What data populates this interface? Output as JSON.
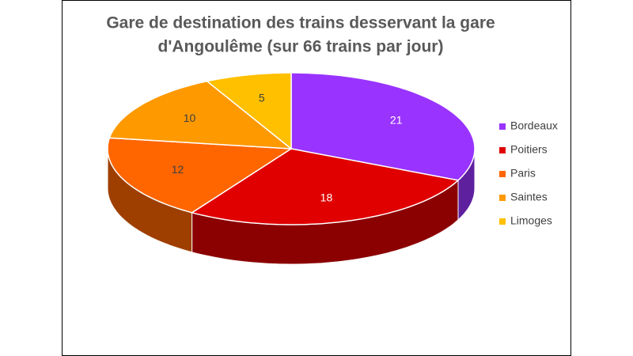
{
  "chart_data": {
    "type": "pie",
    "style": "3d",
    "title": [
      "Gare de destination des trains desservant la gare",
      "d'Angoulême (sur 66 trains par jour)"
    ],
    "categories": [
      "Bordeaux",
      "Poitiers",
      "Paris",
      "Saintes",
      "Limoges"
    ],
    "values": [
      21,
      18,
      12,
      10,
      5
    ],
    "colors": [
      "#9933ff",
      "#e00000",
      "#ff6600",
      "#ff9900",
      "#ffc000"
    ],
    "legend": "right"
  }
}
